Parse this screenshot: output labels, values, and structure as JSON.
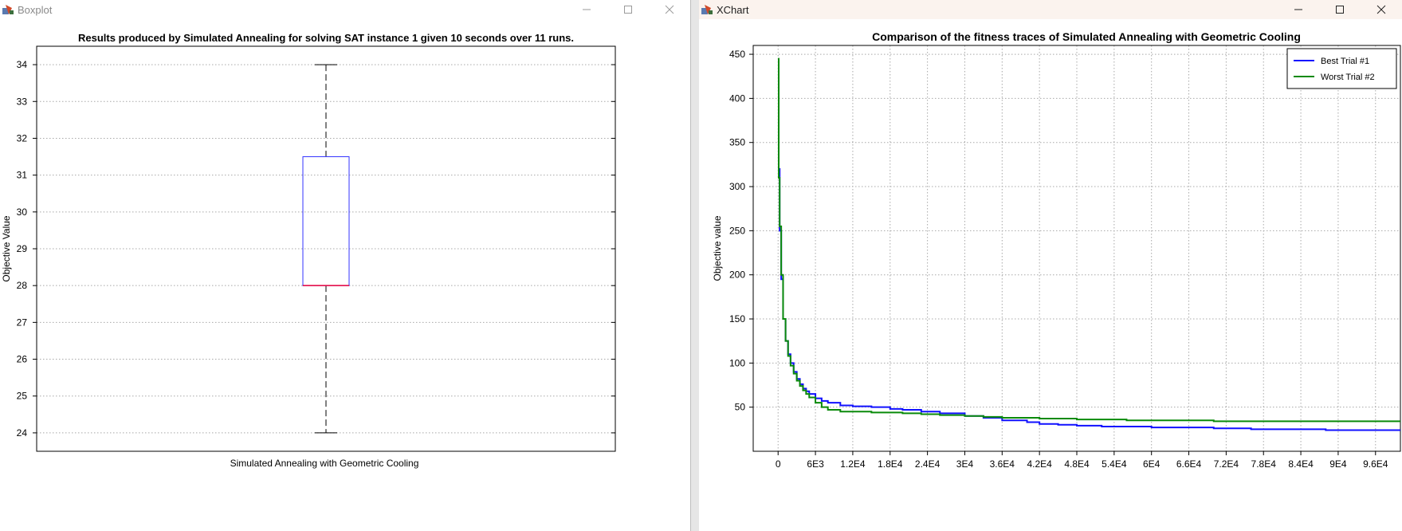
{
  "windows": {
    "left": {
      "title": "Boxplot"
    },
    "right": {
      "title": "XChart"
    }
  },
  "colors": {
    "box": "#3333ff",
    "median": "#e8003d",
    "best_trial": "#1010ff",
    "worst_trial": "#0a8a0a",
    "grid": "#a8a8a8"
  },
  "chart_data": [
    {
      "type": "boxplot",
      "title": "Results produced by Simulated Annealing for solving SAT instance 1 given 10 seconds over 11 runs.",
      "xlabel": "Simulated Annealing with Geometric Cooling",
      "ylabel": "Objective Value",
      "ylim": [
        23.5,
        34.5
      ],
      "yticks": [
        24,
        25,
        26,
        27,
        28,
        29,
        30,
        31,
        32,
        33,
        34
      ],
      "grid": true,
      "boxes": [
        {
          "category": "Simulated Annealing with Geometric Cooling",
          "min": 24,
          "q1": 28,
          "median": 28,
          "q3": 31.5,
          "max": 34
        }
      ]
    },
    {
      "type": "line",
      "title": "Comparison of the fitness traces of Simulated Annealing with Geometric Cooling",
      "xlabel": "",
      "ylabel": "Objective value",
      "xlim": [
        -4000,
        100000
      ],
      "ylim": [
        0,
        460
      ],
      "xticks": [
        0,
        6000,
        12000,
        18000,
        24000,
        30000,
        36000,
        42000,
        48000,
        54000,
        60000,
        66000,
        72000,
        78000,
        84000,
        90000,
        96000
      ],
      "xtick_labels": [
        "0",
        "6E3",
        "1.2E4",
        "1.8E4",
        "2.4E4",
        "3E4",
        "3.6E4",
        "4.2E4",
        "4.8E4",
        "5.4E4",
        "6E4",
        "6.6E4",
        "7.2E4",
        "7.8E4",
        "8.4E4",
        "9E4",
        "9.6E4"
      ],
      "yticks": [
        50,
        100,
        150,
        200,
        250,
        300,
        350,
        400,
        450
      ],
      "grid": true,
      "legend_position": "top-right",
      "series": [
        {
          "name": "Best Trial #1",
          "x": [
            0,
            100,
            250,
            500,
            800,
            1200,
            1600,
            2000,
            2500,
            3000,
            3500,
            4000,
            4500,
            5000,
            6000,
            7000,
            8000,
            10000,
            12000,
            15000,
            18000,
            20000,
            23000,
            26000,
            30000,
            33000,
            36000,
            40000,
            42000,
            45000,
            48000,
            52000,
            56000,
            60000,
            65000,
            70000,
            76000,
            82000,
            88000,
            94000,
            100000
          ],
          "y": [
            420,
            320,
            250,
            195,
            150,
            125,
            110,
            100,
            90,
            82,
            76,
            71,
            68,
            65,
            60,
            57,
            55,
            52,
            51,
            50,
            48,
            47,
            45,
            43,
            40,
            38,
            35,
            33,
            31,
            30,
            29,
            28,
            28,
            27,
            27,
            26,
            25,
            25,
            24,
            24,
            24
          ]
        },
        {
          "name": "Worst Trial #2",
          "x": [
            0,
            100,
            250,
            500,
            800,
            1200,
            1600,
            2000,
            2500,
            3000,
            3500,
            4000,
            4500,
            5000,
            6000,
            7000,
            8000,
            10000,
            12000,
            15000,
            18000,
            20000,
            23000,
            26000,
            30000,
            33000,
            36000,
            40000,
            42000,
            48000,
            56000,
            64000,
            70000,
            80000,
            90000,
            100000
          ],
          "y": [
            445,
            310,
            255,
            200,
            150,
            125,
            108,
            97,
            88,
            80,
            74,
            69,
            65,
            61,
            55,
            50,
            47,
            45,
            45,
            44,
            44,
            43,
            42,
            41,
            40,
            39,
            38,
            38,
            37,
            36,
            35,
            35,
            34,
            34,
            34,
            34
          ]
        }
      ]
    }
  ]
}
